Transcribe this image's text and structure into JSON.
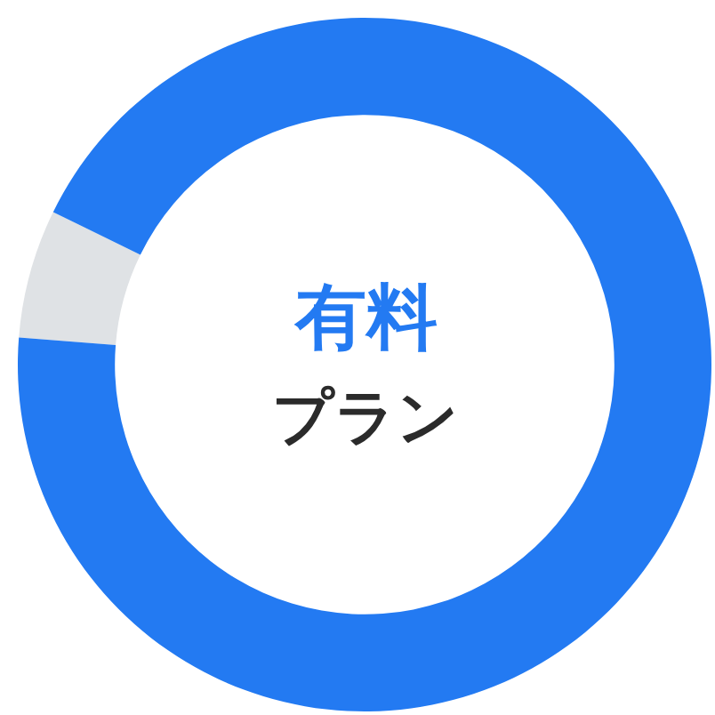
{
  "chart_data": {
    "type": "donut",
    "categories": [
      null,
      null
    ],
    "values": [
      6,
      94
    ],
    "colors": [
      "#dfe2e5",
      "#237af2"
    ],
    "annotations": [
      "有料",
      "プラン"
    ],
    "legend": false
  }
}
